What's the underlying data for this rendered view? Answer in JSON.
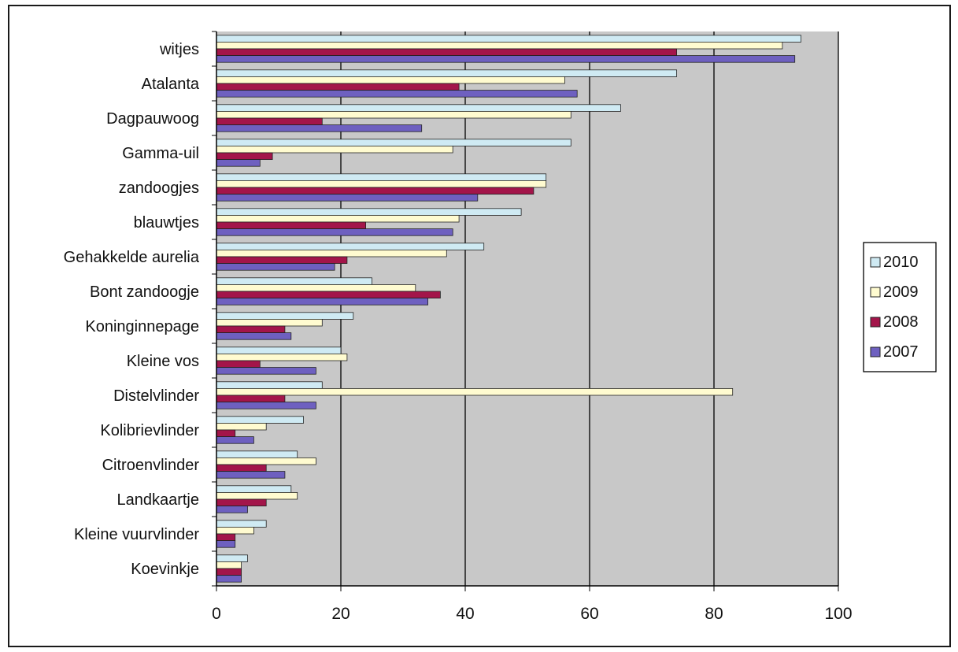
{
  "chart_data": {
    "type": "bar",
    "orientation": "horizontal",
    "categories": [
      "witjes",
      "Atalanta",
      "Dagpauwoog",
      "Gamma-uil",
      "zandoogjes",
      "blauwtjes",
      "Gehakkelde aurelia",
      "Bont zandoogje",
      "Koninginnepage",
      "Kleine vos",
      "Distelvlinder",
      "Kolibrievlinder",
      "Citroenvlinder",
      "Landkaartje",
      "Kleine vuurvlinder",
      "Koevinkje"
    ],
    "series": [
      {
        "name": "2010",
        "color": "#cfeaf3",
        "values": [
          94,
          74,
          65,
          57,
          53,
          49,
          43,
          25,
          22,
          20,
          17,
          14,
          13,
          12,
          8,
          5
        ]
      },
      {
        "name": "2009",
        "color": "#fffbd0",
        "values": [
          91,
          56,
          57,
          38,
          53,
          39,
          37,
          32,
          17,
          21,
          83,
          8,
          16,
          13,
          6,
          4
        ]
      },
      {
        "name": "2008",
        "color": "#a3154a",
        "values": [
          74,
          39,
          17,
          9,
          51,
          24,
          21,
          36,
          11,
          7,
          11,
          3,
          8,
          8,
          3,
          4
        ]
      },
      {
        "name": "2007",
        "color": "#6e60c0",
        "values": [
          93,
          58,
          33,
          7,
          42,
          38,
          19,
          34,
          12,
          16,
          16,
          6,
          11,
          5,
          3,
          4
        ]
      }
    ],
    "xlim": [
      0,
      100
    ],
    "xticks": [
      "0",
      "20",
      "40",
      "60",
      "80",
      "100"
    ],
    "grid": true,
    "plot_background": "#c8c8c8",
    "legend_position": "right",
    "title": "",
    "xlabel": "",
    "ylabel": ""
  }
}
